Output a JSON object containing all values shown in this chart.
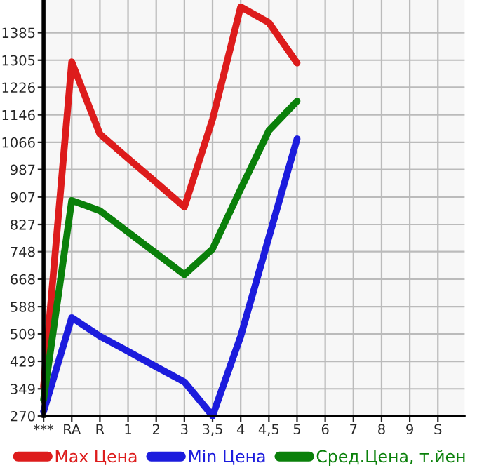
{
  "chart_data": {
    "type": "line",
    "categories": [
      "***",
      "RA",
      "R",
      "1",
      "2",
      "3",
      "3,5",
      "4",
      "4,5",
      "5",
      "6",
      "7",
      "8",
      "9",
      "S"
    ],
    "series": [
      {
        "name": "Max Цена",
        "color": "#dd1c1c",
        "values": [
          355,
          1300,
          1090,
          1019,
          949,
          878,
          1133,
          1460,
          1414,
          1297,
          null,
          null,
          null,
          null,
          null
        ]
      },
      {
        "name": "Min Цена",
        "color": "#1c1cdd",
        "values": [
          283,
          556,
          502,
          458,
          413,
          369,
          270,
          502,
          790,
          1076,
          null,
          null,
          null,
          null,
          null
        ]
      },
      {
        "name": "Сред.Цена, т.йен",
        "color": "#0a800a",
        "values": [
          317,
          897,
          867,
          805,
          743,
          681,
          756,
          930,
          1100,
          1186,
          null,
          null,
          null,
          null,
          null
        ]
      }
    ],
    "ylim": [
      270,
      1480
    ],
    "yticks": [
      270,
      349,
      429,
      509,
      588,
      668,
      748,
      827,
      907,
      987,
      1066,
      1146,
      1226,
      1305,
      1385
    ],
    "grid": true,
    "legend": "bottom",
    "marker": "none",
    "line_style": "solid"
  }
}
